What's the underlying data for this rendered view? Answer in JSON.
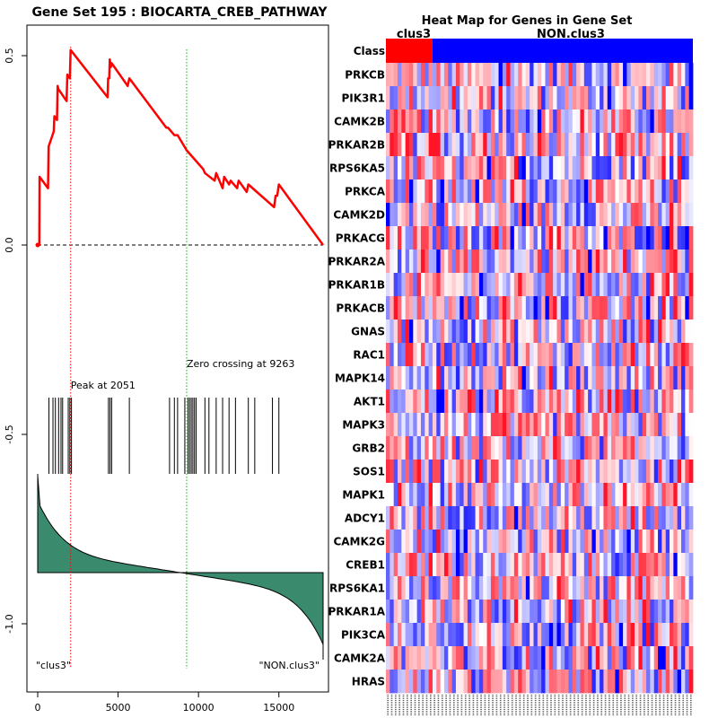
{
  "chart_data": [
    {
      "type": "line",
      "title": "Gene Set  195 : BIOCARTA_CREB_PATHWAY",
      "xlim": [
        0,
        17800
      ],
      "ylim": [
        -1.1,
        0.55
      ],
      "x_ticks": [
        0,
        5000,
        10000,
        15000
      ],
      "x_tick_labels": [
        "0",
        "5000",
        "10000",
        "15000"
      ],
      "y_ticks": [
        0.5,
        0.0,
        -0.5,
        -1.0
      ],
      "y_tick_labels": [
        "0.5",
        "0.0",
        "-0.5",
        "-1.0"
      ],
      "series": [
        {
          "color": "#ff0000",
          "x": [
            0,
            100,
            120,
            640,
            680,
            1000,
            1040,
            1200,
            1240,
            1300,
            1320,
            1800,
            1840,
            2000,
            2051,
            4350,
            4380,
            4450,
            4480,
            4550,
            4600,
            5600,
            5700,
            8000,
            8100,
            8500,
            8700,
            9263,
            10300,
            10400,
            11000,
            11100,
            11500,
            11600,
            11900,
            12000,
            12400,
            12500,
            13000,
            13100,
            14700,
            14800,
            14900,
            15000,
            17750
          ],
          "y": [
            0,
            0.0,
            0.18,
            0.15,
            0.26,
            0.3,
            0.34,
            0.33,
            0.42,
            0.41,
            0.41,
            0.38,
            0.45,
            0.44,
            0.515,
            0.39,
            0.44,
            0.44,
            0.49,
            0.47,
            0.48,
            0.42,
            0.44,
            0.31,
            0.31,
            0.29,
            0.29,
            0.25,
            0.2,
            0.19,
            0.17,
            0.19,
            0.15,
            0.18,
            0.16,
            0.17,
            0.15,
            0.17,
            0.14,
            0.16,
            0.1,
            0.13,
            0.13,
            0.16,
            0.0
          ]
        }
      ],
      "peak_label": "Peak at 2051",
      "peak_x": 2051,
      "zero_cross_label": "Zero crossing at 9263",
      "zero_cross_x": 9263,
      "hit_positions": [
        700,
        950,
        1100,
        1300,
        1450,
        1550,
        1900,
        2000,
        2100,
        4400,
        4500,
        4600,
        5700,
        8200,
        8500,
        8700,
        9150,
        9350,
        9450,
        9550,
        9650,
        9750,
        9850,
        10400,
        10650,
        11100,
        11500,
        11900,
        12300,
        13100,
        13500,
        14600,
        15000
      ],
      "corner_label_left": "\"clus3\"",
      "corner_label_right": "\"NON.clus3\"",
      "colors": {
        "es_line": "#ff0000",
        "peak_line": "#ff0000",
        "zero_line": "#00bb00",
        "fill": "#3a8a6e"
      }
    },
    {
      "type": "heatmap",
      "title": "Heat Map for Genes in Gene Set",
      "class_label": "Class",
      "classes": [
        {
          "name": "clus3",
          "color": "#ff0000",
          "columns": 12
        },
        {
          "name": "NON.clus3",
          "color": "#0000ff",
          "columns": 67
        }
      ],
      "rows": [
        "PRKCB",
        "PIK3R1",
        "CAMK2B",
        "PRKAR2B",
        "RPS6KA5",
        "PRKCA",
        "CAMK2D",
        "PRKACG",
        "PRKAR2A",
        "PRKAR1B",
        "PRKACB",
        "GNAS",
        "RAC1",
        "MAPK14",
        "AKT1",
        "MAPK3",
        "GRB2",
        "SOS1",
        "MAPK1",
        "ADCY1",
        "CAMK2G",
        "CREB1",
        "RPS6KA1",
        "PRKAR1A",
        "PIK3CA",
        "CAMK2A",
        "HRAS"
      ]
    }
  ]
}
